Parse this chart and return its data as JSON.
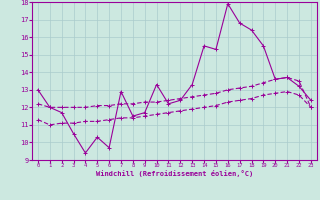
{
  "xlabel": "Windchill (Refroidissement éolien,°C)",
  "background_color": "#cce8e0",
  "grid_color": "#aacccc",
  "line_color": "#990099",
  "xlim": [
    -0.5,
    23.5
  ],
  "ylim": [
    9,
    18
  ],
  "xticks": [
    0,
    1,
    2,
    3,
    4,
    5,
    6,
    7,
    8,
    9,
    10,
    11,
    12,
    13,
    14,
    15,
    16,
    17,
    18,
    19,
    20,
    21,
    22,
    23
  ],
  "yticks": [
    9,
    10,
    11,
    12,
    13,
    14,
    15,
    16,
    17,
    18
  ],
  "curve1_x": [
    0,
    1,
    2,
    3,
    4,
    5,
    6,
    7,
    8,
    9,
    10,
    11,
    12,
    13,
    14,
    15,
    16,
    17,
    18,
    19,
    20,
    21,
    22,
    23
  ],
  "curve1_y": [
    13.0,
    12.0,
    11.7,
    10.5,
    9.4,
    10.3,
    9.7,
    12.9,
    11.5,
    11.7,
    13.3,
    12.2,
    12.4,
    13.3,
    15.5,
    15.3,
    17.9,
    16.8,
    16.4,
    15.5,
    13.6,
    13.7,
    13.2,
    12.4
  ],
  "curve2_x": [
    0,
    1,
    2,
    3,
    4,
    5,
    6,
    7,
    8,
    9,
    10,
    11,
    12,
    13,
    14,
    15,
    16,
    17,
    18,
    19,
    20,
    21,
    22,
    23
  ],
  "curve2_y": [
    12.2,
    12.0,
    12.0,
    12.0,
    12.0,
    12.1,
    12.1,
    12.2,
    12.2,
    12.3,
    12.3,
    12.4,
    12.5,
    12.6,
    12.7,
    12.8,
    13.0,
    13.1,
    13.2,
    13.4,
    13.6,
    13.7,
    13.5,
    12.0
  ],
  "curve3_x": [
    0,
    1,
    2,
    3,
    4,
    5,
    6,
    7,
    8,
    9,
    10,
    11,
    12,
    13,
    14,
    15,
    16,
    17,
    18,
    19,
    20,
    21,
    22,
    23
  ],
  "curve3_y": [
    11.3,
    11.0,
    11.1,
    11.1,
    11.2,
    11.2,
    11.3,
    11.4,
    11.4,
    11.5,
    11.6,
    11.7,
    11.8,
    11.9,
    12.0,
    12.1,
    12.3,
    12.4,
    12.5,
    12.7,
    12.8,
    12.9,
    12.7,
    12.0
  ]
}
